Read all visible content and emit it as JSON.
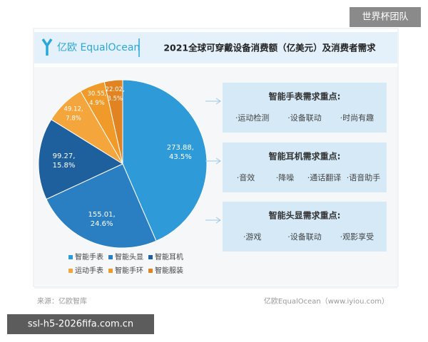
{
  "watermark": "世界杯团队",
  "header": {
    "logo": "亿欧 EqualOcean",
    "title": "2021全球可穿戴设备消费额（亿美元）及消费者需求"
  },
  "chart_data": {
    "type": "pie",
    "categories": [
      "智能手表",
      "智能头显",
      "智能耳机",
      "运动手表",
      "智能手环",
      "智能服装"
    ],
    "values": [
      273.88,
      155.01,
      99.27,
      49.12,
      30.55,
      22.02
    ],
    "value_labels": [
      "273.88,",
      "155.01,",
      "99.27,",
      "49.12,",
      "30.55,",
      "22.02,"
    ],
    "percents": [
      43.5,
      24.6,
      15.8,
      7.8,
      4.9,
      3.5
    ],
    "percent_labels": [
      "43.5%",
      "24.6%",
      "15.8%",
      "7.8%",
      "4.9%",
      "3.5%"
    ],
    "colors": [
      "#2f9ad8",
      "#2a7fc2",
      "#1e5f9e",
      "#f4a63c",
      "#f09a2a",
      "#e08320"
    ]
  },
  "boxes": [
    {
      "title": "智能手表需求重点:",
      "items": [
        "·运动检测",
        "·设备联动",
        "·时尚有趣"
      ]
    },
    {
      "title": "智能耳机需求重点:",
      "items": [
        "·音效",
        "·降噪",
        "·通话翻译",
        "·语音助手"
      ]
    },
    {
      "title": "智能头显需求重点:",
      "items": [
        "·游戏",
        "·设备联动",
        "·观影享受"
      ]
    }
  ],
  "footer": {
    "source": "来源：亿欧智库",
    "credit": "亿欧EqualOcean（www.iyiou.com）"
  },
  "url_tag": "ssl-h5-2026fifa.com.cn"
}
